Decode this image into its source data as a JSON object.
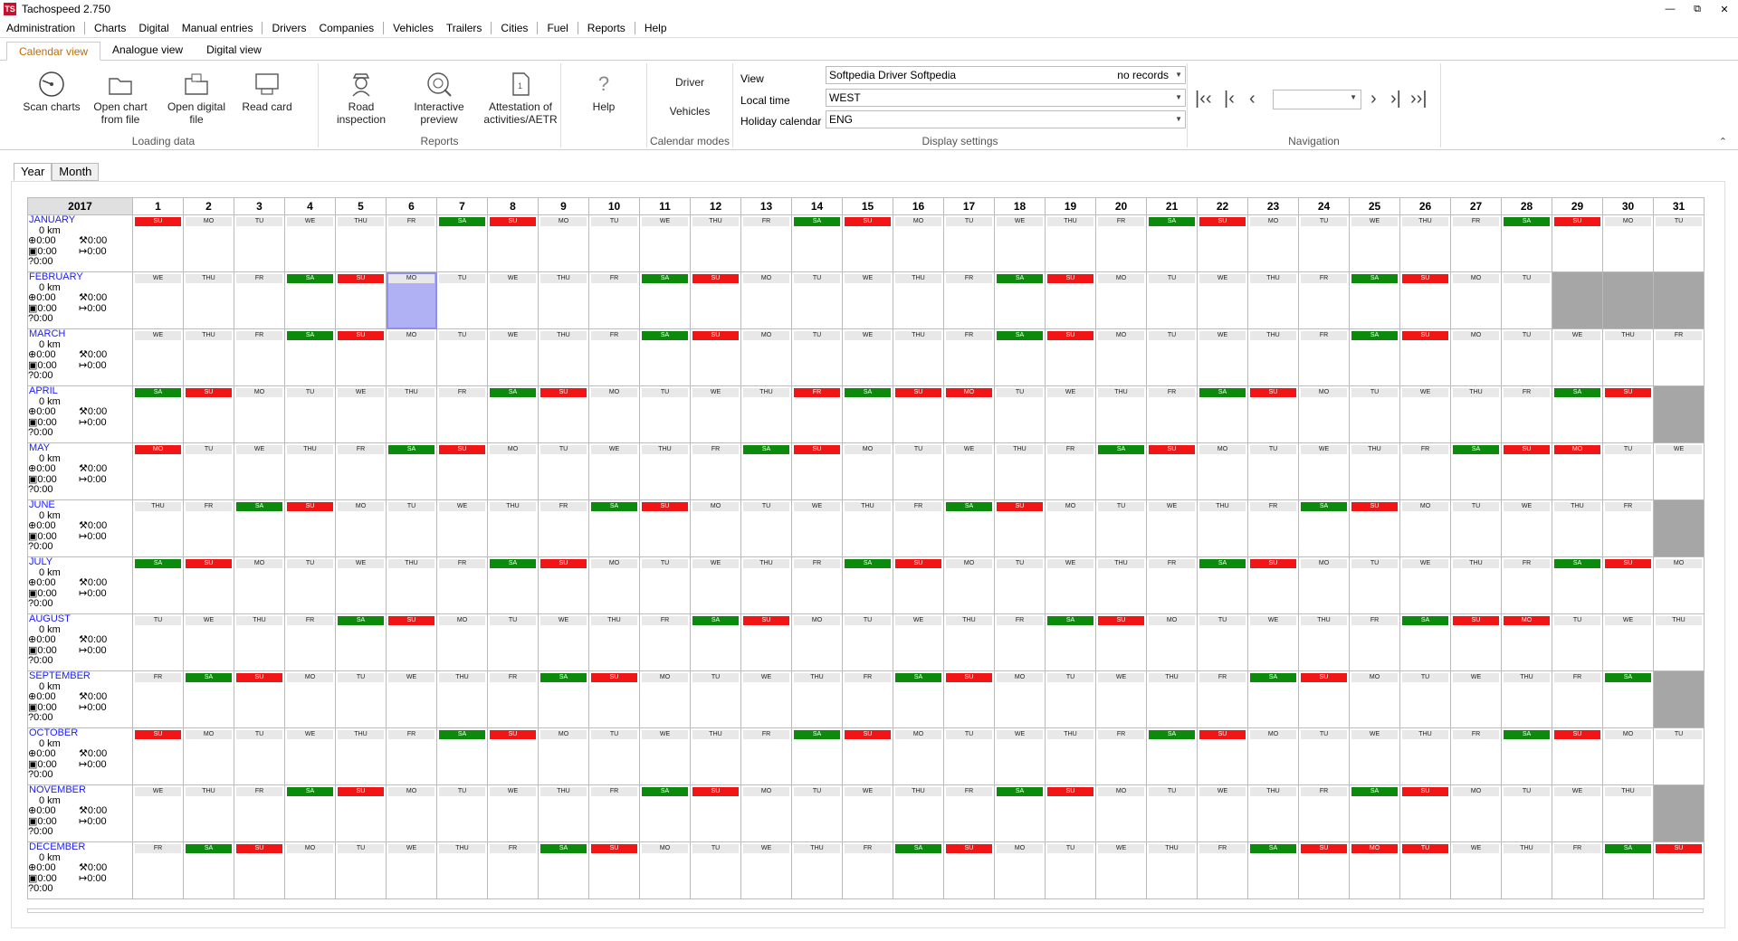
{
  "titlebar": {
    "title": "Tachospeed 2.750",
    "icon": "TS"
  },
  "menu": [
    "Administration",
    "Charts",
    "Digital",
    "Manual entries",
    "Drivers",
    "Companies",
    "Vehicles",
    "Trailers",
    "Cities",
    "Fuel",
    "Reports",
    "Help"
  ],
  "tabs": [
    "Calendar view",
    "Analogue view",
    "Digital view"
  ],
  "ribbon": {
    "loading": {
      "label": "Loading data",
      "buttons": [
        "Scan charts",
        "Open chart from file",
        "Open digital file",
        "Read card"
      ]
    },
    "reports": {
      "label": "Reports",
      "buttons": [
        "Road inspection",
        "Interactive preview",
        "Attestation of activities/AETR"
      ]
    },
    "help": "Help",
    "modes": {
      "label": "Calendar modes",
      "buttons": [
        "Driver",
        "Vehicles"
      ]
    },
    "display": {
      "label": "Display settings",
      "view_label": "View",
      "view_value": "Softpedia Driver Softpedia",
      "view_extra": "no records",
      "time_label": "Local time",
      "time_value": "WEST",
      "holiday_label": "Holiday calendar",
      "holiday_value": "ENG"
    },
    "navigation": {
      "label": "Navigation"
    }
  },
  "viewtabs": [
    "Year",
    "Month"
  ],
  "calendar": {
    "year": "2017",
    "summary": {
      "km": "0 km",
      "t": "0:00"
    },
    "months": [
      {
        "name": "JANUARY",
        "first": 0,
        "days": 31,
        "hol": [
          1
        ]
      },
      {
        "name": "FEBRUARY",
        "first": 3,
        "days": 28,
        "hol": [],
        "sel": 6
      },
      {
        "name": "MARCH",
        "first": 3,
        "days": 31,
        "hol": []
      },
      {
        "name": "APRIL",
        "first": 6,
        "days": 30,
        "hol": [
          14,
          17
        ]
      },
      {
        "name": "MAY",
        "first": 1,
        "days": 31,
        "hol": [
          1,
          29
        ]
      },
      {
        "name": "JUNE",
        "first": 4,
        "days": 30,
        "hol": []
      },
      {
        "name": "JULY",
        "first": 6,
        "days": 31,
        "hol": []
      },
      {
        "name": "AUGUST",
        "first": 2,
        "days": 31,
        "hol": [
          28
        ]
      },
      {
        "name": "SEPTEMBER",
        "first": 5,
        "days": 30,
        "hol": []
      },
      {
        "name": "OCTOBER",
        "first": 0,
        "days": 31,
        "hol": []
      },
      {
        "name": "NOVEMBER",
        "first": 3,
        "days": 30,
        "hol": []
      },
      {
        "name": "DECEMBER",
        "first": 5,
        "days": 31,
        "hol": [
          25,
          26
        ]
      }
    ],
    "weekdays": [
      "SU",
      "MO",
      "TU",
      "WE",
      "THU",
      "FR",
      "SA"
    ]
  }
}
